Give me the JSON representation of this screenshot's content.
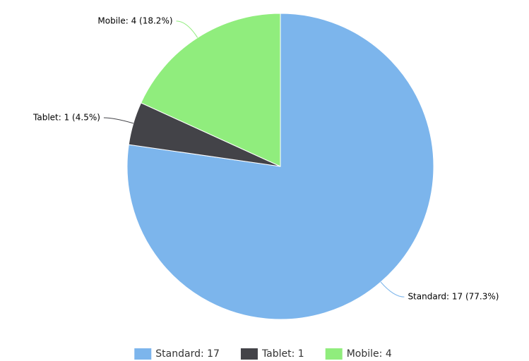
{
  "chart_data": {
    "type": "pie",
    "values": [
      17,
      1,
      4
    ],
    "value_labels": [
      "Standard: 17 (77.3%)",
      "Tablet: 1 (4.5%)",
      "Mobile: 4 (18.2%)"
    ],
    "legend_labels": [
      "Standard: 17",
      "Tablet: 1",
      "Mobile: 4"
    ],
    "colors": [
      "#7cb5ec",
      "#434348",
      "#90ed7d"
    ]
  }
}
